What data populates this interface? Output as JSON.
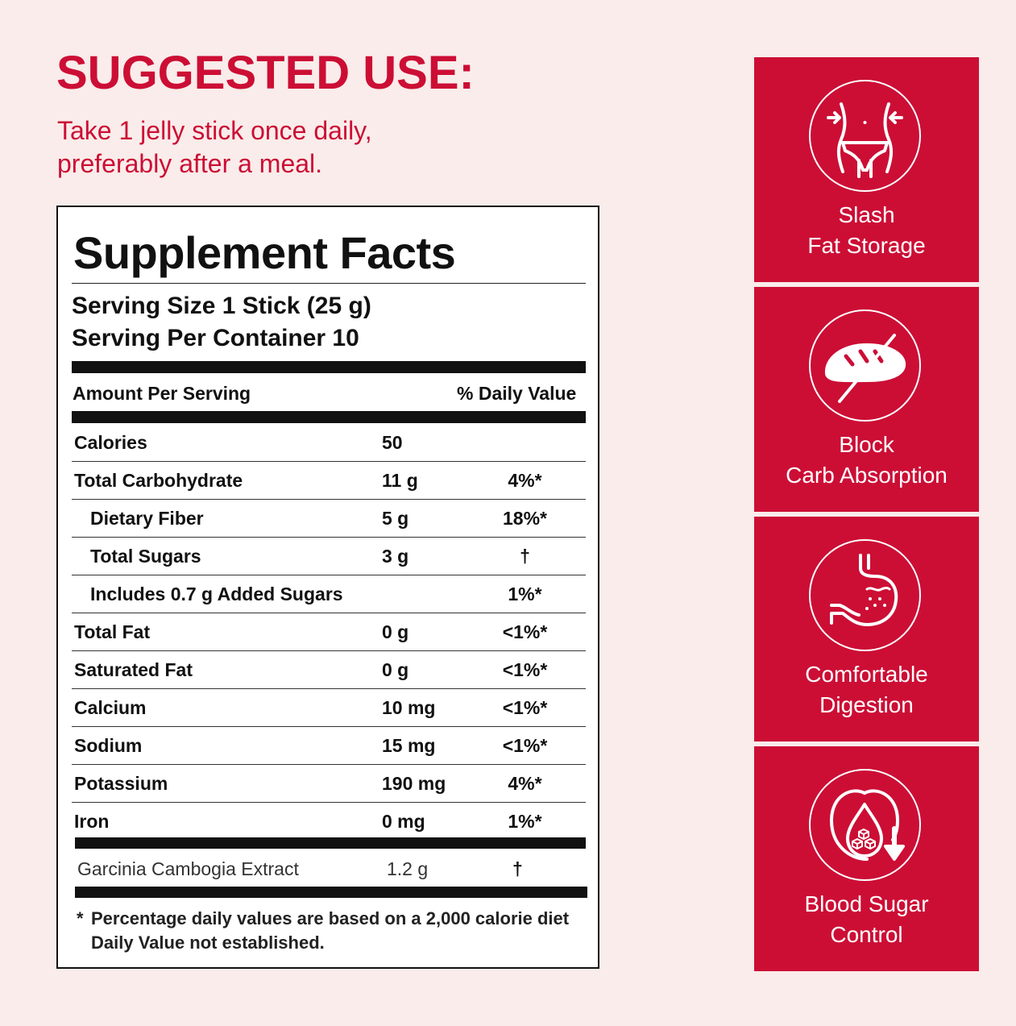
{
  "suggested_use": {
    "title": "SUGGESTED USE:",
    "line1": "Take 1 jelly stick once daily,",
    "line2": "preferably after a meal."
  },
  "facts": {
    "title": "Supplement Facts",
    "serving_size": "Serving Size 1 Stick (25 g)",
    "servings_per_container": "Serving Per Container 10",
    "header_amount": "Amount Per Serving",
    "header_dv": "% Daily Value",
    "rows": [
      {
        "name": "Calories",
        "amount": "50",
        "dv": ""
      },
      {
        "name": "Total Carbohydrate",
        "amount": "11 g",
        "dv": "4%*"
      },
      {
        "name": "Dietary Fiber",
        "amount": "5 g",
        "dv": "18%*"
      },
      {
        "name": "Total Sugars",
        "amount": "3 g",
        "dv": "†"
      },
      {
        "name": "Includes 0.7 g Added Sugars",
        "amount": "",
        "dv": "1%*"
      },
      {
        "name": "Total Fat",
        "amount": "0 g",
        "dv": "<1%*"
      },
      {
        "name": "Saturated Fat",
        "amount": "0 g",
        "dv": "<1%*"
      },
      {
        "name": "Calcium",
        "amount": "10 mg",
        "dv": "<1%*"
      },
      {
        "name": "Sodium",
        "amount": "15 mg",
        "dv": "<1%*"
      },
      {
        "name": "Potassium",
        "amount": "190 mg",
        "dv": "4%*"
      },
      {
        "name": "Iron",
        "amount": "0 mg",
        "dv": "1%*"
      }
    ],
    "extract": {
      "name": "Garcinia Cambogia Extract",
      "amount": "1.2 g",
      "dv": "†"
    },
    "footnote_star": "*",
    "footnote_line1": "Percentage daily values are based on a 2,000 calorie diet",
    "footnote_line2": "Daily Value not established."
  },
  "benefits": [
    {
      "icon": "waist-icon",
      "line1": "Slash",
      "line2": "Fat Storage"
    },
    {
      "icon": "no-bread-icon",
      "line1": "Block",
      "line2": "Carb Absorption"
    },
    {
      "icon": "stomach-icon",
      "line1": "Comfortable",
      "line2": "Digestion"
    },
    {
      "icon": "blood-drop-sugar-icon",
      "line1": "Blood Sugar",
      "line2": "Control"
    }
  ],
  "colors": {
    "accent": "#cc0e35",
    "background": "#f9ecea"
  }
}
